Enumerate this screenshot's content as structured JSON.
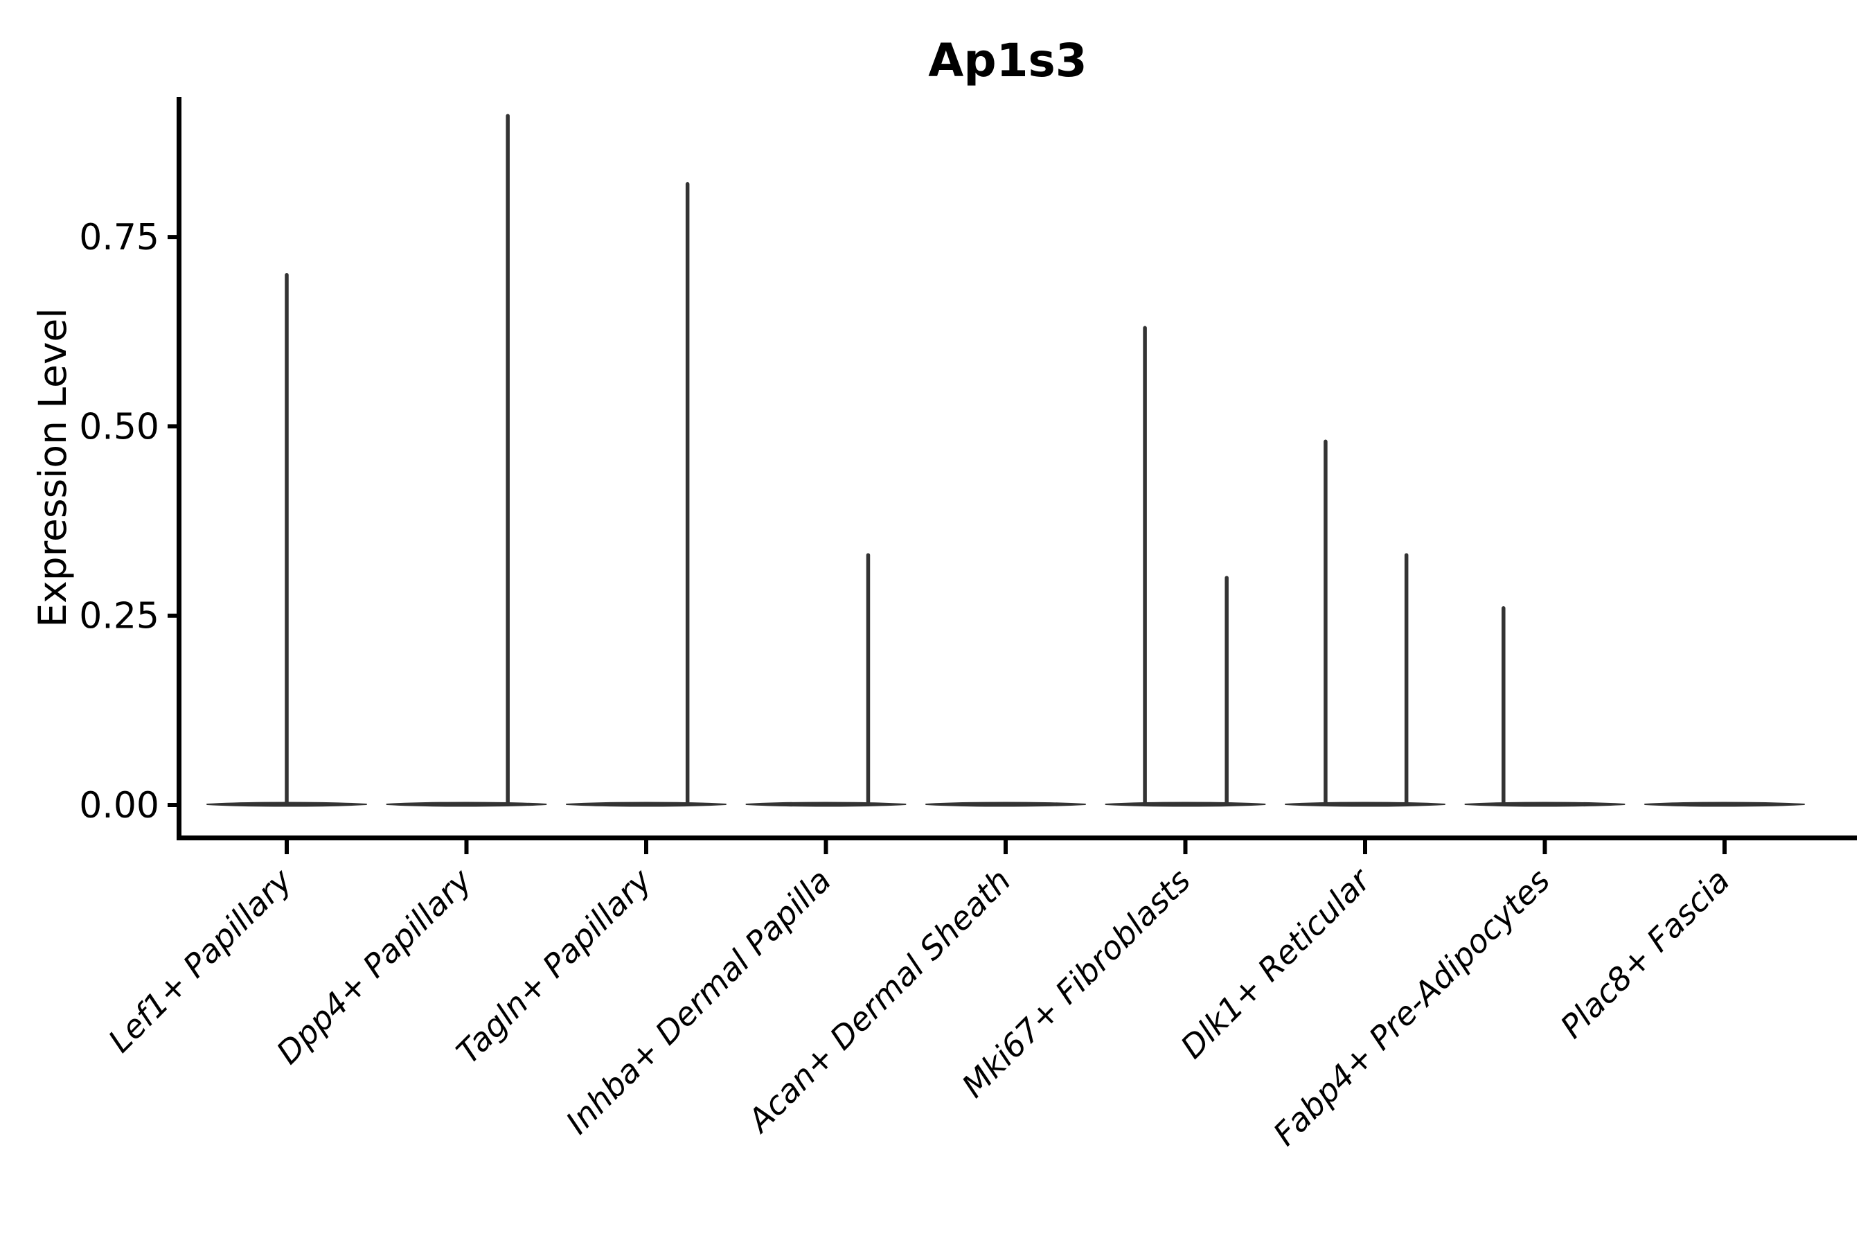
{
  "figure": {
    "title": "Ap1s3",
    "background": "#ffffff"
  },
  "chart_data": {
    "type": "violin",
    "title": "Ap1s3",
    "xlabel": "",
    "ylabel": "Expression Level",
    "ylim": [
      0,
      0.94
    ],
    "grid": false,
    "legend": null,
    "axis_style": "left-bottom-spines-only",
    "yticks": [
      {
        "value": 0.0,
        "label": "0.00"
      },
      {
        "value": 0.25,
        "label": "0.25"
      },
      {
        "value": 0.5,
        "label": "0.50"
      },
      {
        "value": 0.75,
        "label": "0.75"
      }
    ],
    "categories": [
      "Lef1+ Papillary",
      "Dpp4+ Papillary",
      "Tagln+ Papillary",
      "Inhba+ Dermal Papilla",
      "Acan+ Dermal Sheath",
      "Mki67+ Fibroblasts",
      "Dlk1+ Reticular",
      "Fabp4+ Pre-Adipocytes",
      "Plac8+ Fascia"
    ],
    "violins": [
      {
        "category": "Lef1+ Papillary",
        "zero_mass_base": true,
        "spikes": [
          {
            "offset": 0.0,
            "max": 0.7
          }
        ]
      },
      {
        "category": "Dpp4+ Papillary",
        "zero_mass_base": true,
        "spikes": [
          {
            "offset": 0.23,
            "max": 0.91
          }
        ]
      },
      {
        "category": "Tagln+ Papillary",
        "zero_mass_base": true,
        "spikes": [
          {
            "offset": 0.23,
            "max": 0.82
          }
        ]
      },
      {
        "category": "Inhba+ Dermal Papilla",
        "zero_mass_base": true,
        "spikes": [
          {
            "offset": 0.235,
            "max": 0.33
          }
        ]
      },
      {
        "category": "Acan+ Dermal Sheath",
        "zero_mass_base": true,
        "spikes": []
      },
      {
        "category": "Mki67+ Fibroblasts",
        "zero_mass_base": true,
        "spikes": [
          {
            "offset": -0.225,
            "max": 0.63
          },
          {
            "offset": 0.23,
            "max": 0.3
          }
        ]
      },
      {
        "category": "Dlk1+ Reticular",
        "zero_mass_base": true,
        "spikes": [
          {
            "offset": -0.22,
            "max": 0.48
          },
          {
            "offset": 0.23,
            "max": 0.33
          }
        ]
      },
      {
        "category": "Fabp4+ Pre-Adipocytes",
        "zero_mass_base": true,
        "spikes": [
          {
            "offset": -0.23,
            "max": 0.26
          }
        ]
      },
      {
        "category": "Plac8+ Fascia",
        "zero_mass_base": true,
        "spikes": []
      }
    ],
    "colors": {
      "violin": "#333333",
      "axis": "#000000",
      "text": "#000000",
      "background": "#ffffff"
    }
  }
}
